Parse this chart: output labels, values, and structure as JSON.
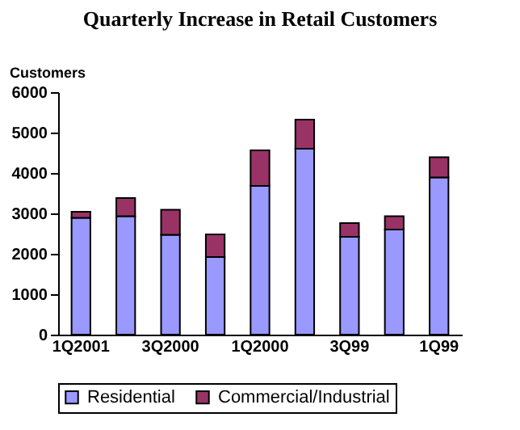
{
  "chart_data": {
    "type": "bar",
    "title": "Quarterly Increase in Retail Customers",
    "ylabel": "Customers",
    "categories": [
      "1Q2001",
      null,
      "3Q2000",
      null,
      "1Q2000",
      null,
      "3Q99",
      null,
      "1Q99"
    ],
    "stacked": true,
    "legend": "bottom",
    "grid": false,
    "ylim": [
      0,
      6000
    ],
    "yticks": [
      0,
      1000,
      2000,
      3000,
      4000,
      5000,
      6000
    ],
    "series": [
      {
        "name": "Residential",
        "color": "#9999ff",
        "values": [
          2890,
          2930,
          2470,
          1920,
          3680,
          4600,
          2420,
          2600,
          3890
        ]
      },
      {
        "name": "Commercial/Industrial",
        "color": "#993366",
        "values": [
          150,
          450,
          620,
          560,
          880,
          720,
          340,
          330,
          500
        ]
      }
    ]
  }
}
